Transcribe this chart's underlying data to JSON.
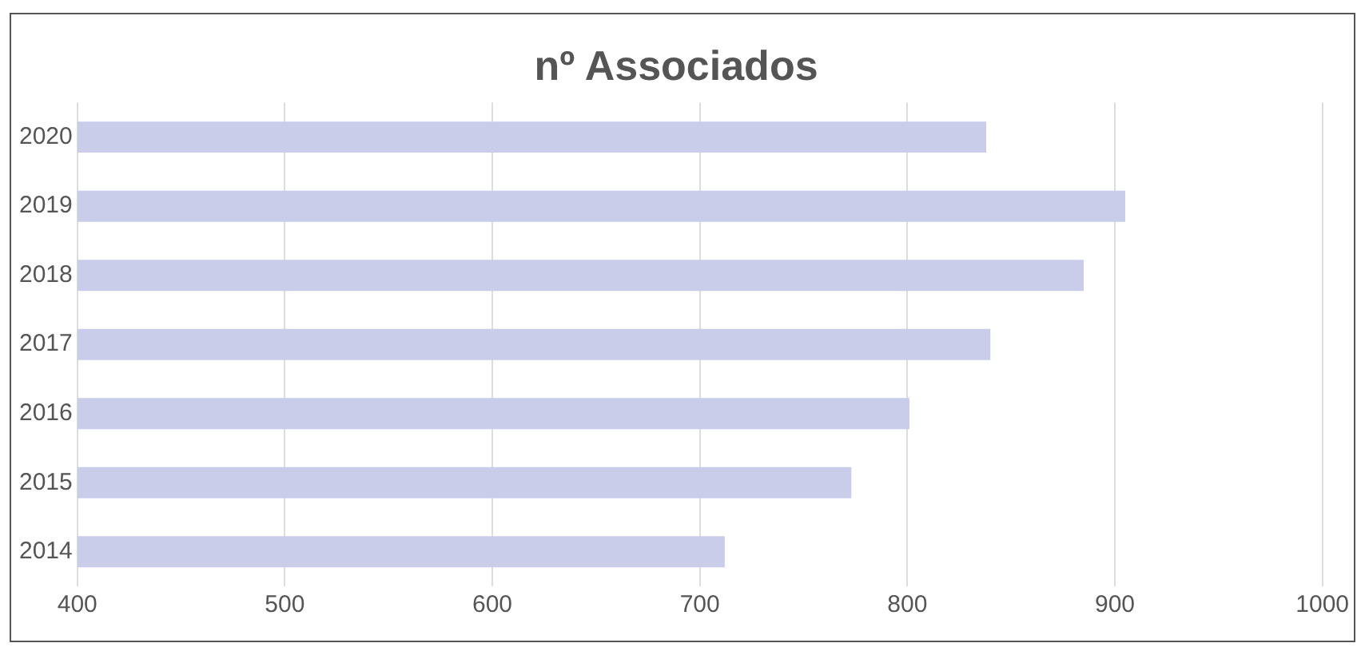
{
  "chart_data": {
    "type": "bar",
    "orientation": "horizontal",
    "title": "nº Associados",
    "categories": [
      "2020",
      "2019",
      "2018",
      "2017",
      "2016",
      "2015",
      "2014"
    ],
    "values": [
      838,
      905,
      885,
      840,
      801,
      773,
      712
    ],
    "color": "#c9cdea",
    "xlim": [
      400,
      1000
    ],
    "xticks": [
      400,
      500,
      600,
      700,
      800,
      900,
      1000
    ],
    "grid": "x",
    "legend": false
  }
}
